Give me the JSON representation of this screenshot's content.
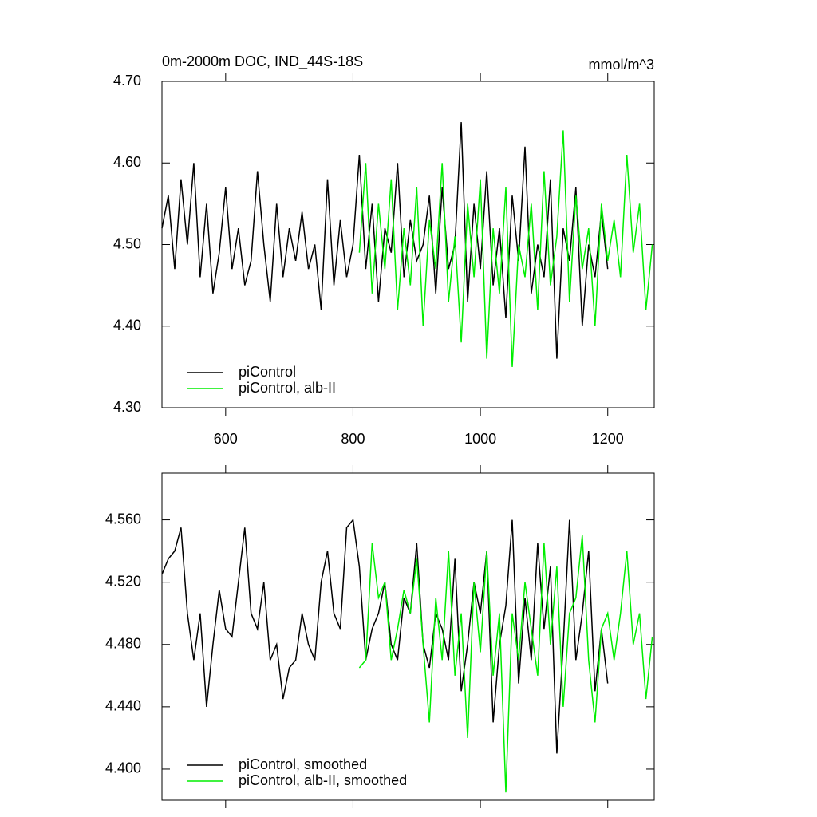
{
  "chart_data": [
    {
      "type": "line",
      "title": "0m-2000m DOC, IND_44S-18S",
      "units": "mmol/m^3",
      "xlim": [
        500,
        1273
      ],
      "xticks": [
        600,
        800,
        1000,
        1200
      ],
      "ylim": [
        4.3,
        4.7
      ],
      "yticks": [
        {
          "value": 4.3,
          "label": "4.30"
        },
        {
          "value": 4.4,
          "label": "4.40"
        },
        {
          "value": 4.5,
          "label": "4.50"
        },
        {
          "value": 4.6,
          "label": "4.60"
        },
        {
          "value": 4.7,
          "label": "4.70"
        }
      ],
      "legend": "lower left",
      "series": [
        {
          "name": "piControl",
          "color": "#000000",
          "x": [
            500,
            510,
            520,
            530,
            540,
            550,
            560,
            570,
            580,
            590,
            600,
            610,
            620,
            630,
            640,
            650,
            660,
            670,
            680,
            690,
            700,
            710,
            720,
            730,
            740,
            750,
            760,
            770,
            780,
            790,
            800,
            810,
            820,
            830,
            840,
            850,
            860,
            870,
            880,
            890,
            900,
            910,
            920,
            930,
            940,
            950,
            960,
            970,
            980,
            990,
            1000,
            1010,
            1020,
            1030,
            1040,
            1050,
            1060,
            1070,
            1080,
            1090,
            1100,
            1110,
            1120,
            1130,
            1140,
            1150,
            1160,
            1170,
            1180,
            1190,
            1200
          ],
          "values": [
            4.52,
            4.56,
            4.47,
            4.58,
            4.5,
            4.6,
            4.46,
            4.55,
            4.44,
            4.49,
            4.57,
            4.47,
            4.52,
            4.45,
            4.48,
            4.59,
            4.5,
            4.43,
            4.55,
            4.46,
            4.52,
            4.48,
            4.54,
            4.47,
            4.5,
            4.42,
            4.58,
            4.45,
            4.53,
            4.46,
            4.5,
            4.61,
            4.47,
            4.55,
            4.43,
            4.52,
            4.49,
            4.6,
            4.46,
            4.53,
            4.48,
            4.5,
            4.56,
            4.44,
            4.57,
            4.47,
            4.5,
            4.65,
            4.43,
            4.55,
            4.47,
            4.59,
            4.45,
            4.52,
            4.41,
            4.56,
            4.48,
            4.62,
            4.44,
            4.5,
            4.46,
            4.58,
            4.36,
            4.52,
            4.48,
            4.57,
            4.4,
            4.5,
            4.46,
            4.54,
            4.47
          ]
        },
        {
          "name": "piControl, alb-II",
          "color": "#00ee00",
          "x": [
            810,
            820,
            830,
            840,
            850,
            860,
            870,
            880,
            890,
            900,
            910,
            920,
            930,
            940,
            950,
            960,
            970,
            980,
            990,
            1000,
            1010,
            1020,
            1030,
            1040,
            1050,
            1060,
            1070,
            1080,
            1090,
            1100,
            1110,
            1120,
            1130,
            1140,
            1150,
            1160,
            1170,
            1180,
            1190,
            1200,
            1210,
            1220,
            1230,
            1240,
            1250,
            1260,
            1270
          ],
          "values": [
            4.49,
            4.6,
            4.44,
            4.55,
            4.47,
            4.58,
            4.42,
            4.52,
            4.45,
            4.57,
            4.4,
            4.53,
            4.47,
            4.6,
            4.43,
            4.51,
            4.38,
            4.55,
            4.46,
            4.58,
            4.36,
            4.52,
            4.44,
            4.57,
            4.35,
            4.5,
            4.46,
            4.55,
            4.42,
            4.59,
            4.45,
            4.51,
            4.64,
            4.43,
            4.56,
            4.47,
            4.52,
            4.4,
            4.55,
            4.48,
            4.53,
            4.46,
            4.61,
            4.49,
            4.55,
            4.42,
            4.5
          ]
        }
      ]
    },
    {
      "type": "line",
      "xlim": [
        500,
        1273
      ],
      "xticks": [
        600,
        800,
        1000,
        1200
      ],
      "ylim": [
        4.38,
        4.59
      ],
      "yticks": [
        {
          "value": 4.4,
          "label": "4.400"
        },
        {
          "value": 4.44,
          "label": "4.440"
        },
        {
          "value": 4.48,
          "label": "4.480"
        },
        {
          "value": 4.52,
          "label": "4.520"
        },
        {
          "value": 4.56,
          "label": "4.560"
        }
      ],
      "legend": "lower left",
      "series": [
        {
          "name": "piControl, smoothed",
          "color": "#000000",
          "x": [
            500,
            510,
            520,
            530,
            540,
            550,
            560,
            570,
            580,
            590,
            600,
            610,
            620,
            630,
            640,
            650,
            660,
            670,
            680,
            690,
            700,
            710,
            720,
            730,
            740,
            750,
            760,
            770,
            780,
            790,
            800,
            810,
            820,
            830,
            840,
            850,
            860,
            870,
            880,
            890,
            900,
            910,
            920,
            930,
            940,
            950,
            960,
            970,
            980,
            990,
            1000,
            1010,
            1020,
            1030,
            1040,
            1050,
            1060,
            1070,
            1080,
            1090,
            1100,
            1110,
            1120,
            1130,
            1140,
            1150,
            1160,
            1170,
            1180,
            1190,
            1200
          ],
          "values": [
            4.525,
            4.535,
            4.54,
            4.555,
            4.5,
            4.47,
            4.5,
            4.44,
            4.48,
            4.515,
            4.49,
            4.485,
            4.52,
            4.555,
            4.5,
            4.49,
            4.52,
            4.47,
            4.48,
            4.445,
            4.465,
            4.47,
            4.5,
            4.48,
            4.47,
            4.52,
            4.54,
            4.5,
            4.49,
            4.555,
            4.56,
            4.53,
            4.47,
            4.49,
            4.5,
            4.52,
            4.48,
            4.47,
            4.51,
            4.5,
            4.545,
            4.48,
            4.465,
            4.5,
            4.49,
            4.47,
            4.535,
            4.45,
            4.48,
            4.52,
            4.5,
            4.54,
            4.43,
            4.48,
            4.505,
            4.56,
            4.455,
            4.51,
            4.47,
            4.545,
            4.49,
            4.53,
            4.41,
            4.48,
            4.56,
            4.47,
            4.5,
            4.54,
            4.45,
            4.49,
            4.455
          ]
        },
        {
          "name": "piControl, alb-II, smoothed",
          "color": "#00ee00",
          "x": [
            810,
            820,
            830,
            840,
            850,
            860,
            870,
            880,
            890,
            900,
            910,
            920,
            930,
            940,
            950,
            960,
            970,
            980,
            990,
            1000,
            1010,
            1020,
            1030,
            1040,
            1050,
            1060,
            1070,
            1080,
            1090,
            1100,
            1110,
            1120,
            1130,
            1140,
            1150,
            1160,
            1170,
            1180,
            1190,
            1200,
            1210,
            1220,
            1230,
            1240,
            1250,
            1260,
            1270
          ],
          "values": [
            4.465,
            4.47,
            4.545,
            4.51,
            4.52,
            4.47,
            4.49,
            4.515,
            4.5,
            4.535,
            4.48,
            4.43,
            4.51,
            4.47,
            4.54,
            4.46,
            4.5,
            4.42,
            4.52,
            4.475,
            4.54,
            4.46,
            4.5,
            4.385,
            4.5,
            4.47,
            4.52,
            4.49,
            4.46,
            4.545,
            4.48,
            4.53,
            4.44,
            4.5,
            4.51,
            4.55,
            4.47,
            4.43,
            4.49,
            4.5,
            4.47,
            4.5,
            4.54,
            4.48,
            4.5,
            4.445,
            4.485
          ]
        }
      ]
    }
  ]
}
